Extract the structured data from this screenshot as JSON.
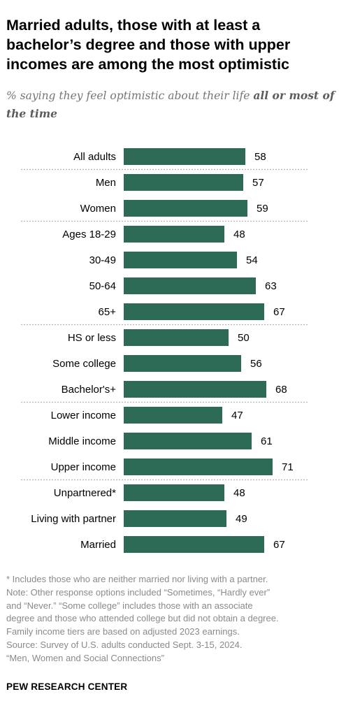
{
  "header": {
    "title": "Married adults, those with at least a bachelor’s degree and those with upper incomes are among the most optimistic",
    "subtitle_prefix": "% saying they feel optimistic about their life ",
    "subtitle_emphasis": "all or most of the time"
  },
  "colors": {
    "bar": "#2e6b57",
    "divider": "#b3b3b3",
    "text": "#000000"
  },
  "chart_data": {
    "type": "bar",
    "orientation": "horizontal",
    "categories": [
      "All adults",
      "Men",
      "Women",
      "Ages 18-29",
      "30-49",
      "50-64",
      "65+",
      "HS or less",
      "Some college",
      "Bachelor's+",
      "Lower income",
      "Middle income",
      "Upper income",
      "Unpartnered*",
      "Living with partner",
      "Married"
    ],
    "values": [
      58,
      57,
      59,
      48,
      54,
      63,
      67,
      50,
      56,
      68,
      47,
      61,
      71,
      48,
      49,
      67
    ],
    "groups_end_after": [
      0,
      2,
      6,
      9,
      12
    ],
    "xlim": [
      0,
      100
    ],
    "grid": false,
    "data_labels": true
  },
  "footer": {
    "notes": [
      "* Includes those who are neither married nor living with a partner.",
      "Note: Other response options included “Sometimes, “Hardly ever”",
      "and “Never.” “Some college” includes those with an associate",
      "degree and those who attended college but did not obtain a degree.",
      "Family income tiers are based on adjusted 2023 earnings.",
      "Source: Survey of U.S. adults conducted Sept. 3-15, 2024.",
      "“Men, Women and Social Connections”"
    ],
    "brand": "PEW RESEARCH CENTER"
  }
}
